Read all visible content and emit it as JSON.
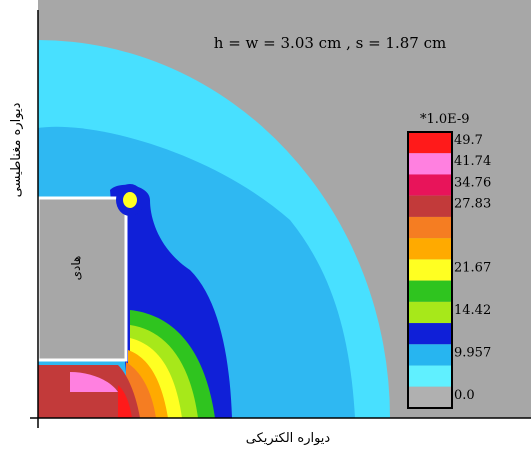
{
  "figure": {
    "params_text": "h = w = 3.03 cm  ,  s = 1.87 cm",
    "left_wall_label": "دیواره مغناطیسی",
    "bottom_wall_label": "دیواره الکتریکی",
    "conductor_label": "هادی"
  },
  "legend": {
    "scale": "*1.0E-9",
    "entries": [
      {
        "label": "49.7",
        "color": "#ff1a1a"
      },
      {
        "label": "41.74",
        "color": "#ff80e0"
      },
      {
        "label": "34.76",
        "color": "#e8145a"
      },
      {
        "label": "27.83",
        "color": "#c23a3a"
      },
      {
        "label": "",
        "color": "#f57d22"
      },
      {
        "label": "",
        "color": "#ffaa00"
      },
      {
        "label": "21.67",
        "color": "#ffff22"
      },
      {
        "label": "",
        "color": "#2fc41f"
      },
      {
        "label": "14.42",
        "color": "#a7e81a"
      },
      {
        "label": "",
        "color": "#0f1fd8"
      },
      {
        "label": "9.957",
        "color": "#27b5f0"
      },
      {
        "label": "",
        "color": "#60f0ff"
      },
      {
        "label": "0.0",
        "color": "#b0b0b0"
      }
    ]
  },
  "colors": {
    "background": "#a7a7a7",
    "field_light": "#48e0ff",
    "field_mid": "#2fb8f2",
    "field_dark": "#1020d8"
  }
}
